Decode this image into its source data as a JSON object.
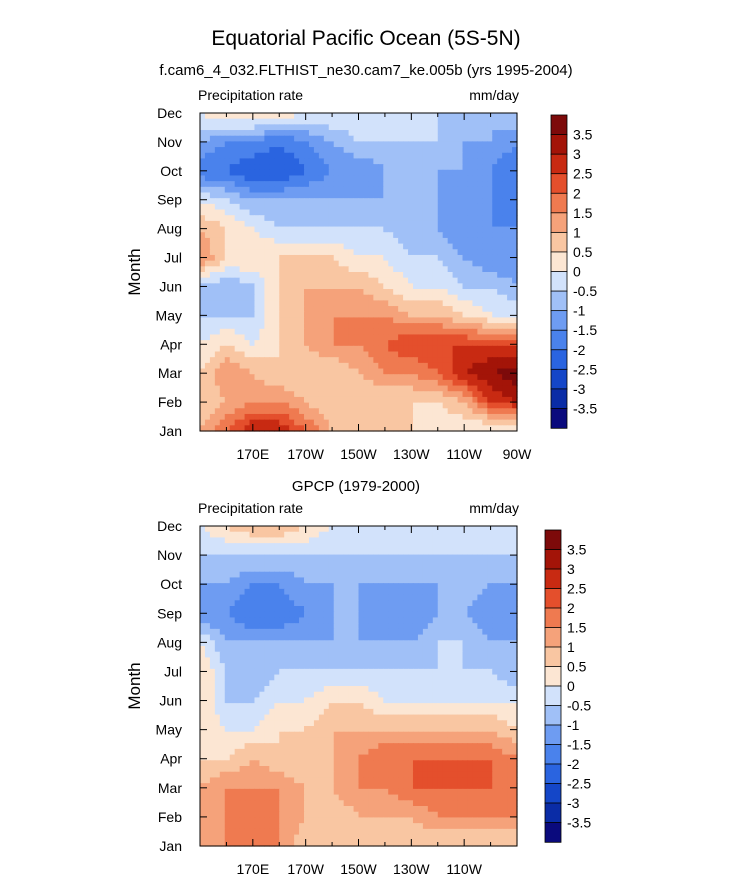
{
  "figure": {
    "title": "Equatorial Pacific Ocean (5S-5N)",
    "subtitle": "f.cam6_4_032.FLTHIST_ne30.cam7_ke.005b (yrs 1995-2004)"
  },
  "chart_data": [
    {
      "type": "heatmap",
      "panel_title": "",
      "variable": "Precipitation rate",
      "units": "mm/day",
      "xlabel": "",
      "ylabel": "Month",
      "x_ticks": [
        "170E",
        "170W",
        "150W",
        "130W",
        "110W",
        "90W"
      ],
      "x_tick_lon": [
        170,
        190,
        210,
        230,
        250,
        270
      ],
      "xlim_lon": [
        150,
        270
      ],
      "y_ticks": [
        "Jan",
        "Feb",
        "Mar",
        "Apr",
        "May",
        "Jun",
        "Jul",
        "Aug",
        "Sep",
        "Oct",
        "Nov",
        "Dec"
      ],
      "levels": [
        -3.5,
        -3,
        -2.5,
        -2,
        -1.5,
        -1,
        -0.5,
        0,
        0.5,
        1,
        1.5,
        2,
        2.5,
        3,
        3.5
      ],
      "colorbar_labels": [
        "3.5",
        "3",
        "2.5",
        "2",
        "1.5",
        "1",
        "0.5",
        "0",
        "-0.5",
        "-1",
        "-1.5",
        "-2",
        "-2.5",
        "-3",
        "-3.5"
      ],
      "lons": [
        150,
        160,
        170,
        180,
        190,
        200,
        210,
        220,
        230,
        240,
        250,
        260,
        270
      ],
      "values": [
        [
          1.0,
          2.0,
          3.0,
          3.0,
          2.0,
          1.0,
          0.5,
          0.5,
          0.5,
          0.0,
          0.0,
          -0.2,
          -0.3
        ],
        [
          0.5,
          1.0,
          1.5,
          1.5,
          1.0,
          0.5,
          0.5,
          0.5,
          0.5,
          0.5,
          1.0,
          2.5,
          3.0
        ],
        [
          0.5,
          1.5,
          1.0,
          0.5,
          0.5,
          0.5,
          1.0,
          1.5,
          1.5,
          2.0,
          3.0,
          3.5,
          3.8
        ],
        [
          0.0,
          0.5,
          0.0,
          0.5,
          1.0,
          1.5,
          1.5,
          2.0,
          2.5,
          2.5,
          2.5,
          2.5,
          2.5
        ],
        [
          -0.5,
          -0.5,
          -0.5,
          0.5,
          1.0,
          1.5,
          1.5,
          1.5,
          1.0,
          1.0,
          0.5,
          0.0,
          0.0
        ],
        [
          -0.5,
          -1.0,
          -0.5,
          0.5,
          1.0,
          1.0,
          1.0,
          0.5,
          0.0,
          0.0,
          -0.5,
          -0.5,
          -1.0
        ],
        [
          1.5,
          0.5,
          0.5,
          0.5,
          0.5,
          0.5,
          0.0,
          0.0,
          -0.5,
          -0.5,
          -1.0,
          -1.5,
          -1.5
        ],
        [
          1.0,
          0.5,
          0.0,
          -0.5,
          -0.5,
          -0.5,
          -0.5,
          -0.5,
          -1.0,
          -1.0,
          -1.5,
          -1.5,
          -1.5
        ],
        [
          0.0,
          -0.5,
          -1.0,
          -1.0,
          -1.0,
          -1.0,
          -1.0,
          -1.0,
          -1.0,
          -1.0,
          -1.5,
          -1.5,
          -2.0
        ],
        [
          -2.0,
          -2.0,
          -2.5,
          -2.5,
          -2.0,
          -1.5,
          -1.5,
          -1.0,
          -1.0,
          -1.0,
          -1.0,
          -1.5,
          -2.0
        ],
        [
          -1.0,
          -1.5,
          -1.5,
          -2.0,
          -1.5,
          -1.0,
          -0.5,
          -0.5,
          -0.5,
          -0.5,
          -1.0,
          -1.0,
          -1.5
        ],
        [
          0.0,
          0.5,
          0.5,
          0.5,
          0.0,
          0.0,
          0.0,
          -0.5,
          0.0,
          -0.5,
          -0.5,
          -1.0,
          -0.5
        ]
      ]
    },
    {
      "type": "heatmap",
      "panel_title": "GPCP (1979-2000)",
      "variable": "Precipitation rate",
      "units": "mm/day",
      "xlabel": "",
      "ylabel": "Month",
      "x_ticks": [
        "170E",
        "170W",
        "150W",
        "130W",
        "110W"
      ],
      "x_tick_lon": [
        170,
        190,
        210,
        230,
        250
      ],
      "xlim_lon": [
        150,
        270
      ],
      "y_ticks": [
        "Jan",
        "Feb",
        "Mar",
        "Apr",
        "May",
        "Jun",
        "Jul",
        "Aug",
        "Sep",
        "Oct",
        "Nov",
        "Dec"
      ],
      "levels": [
        -3.5,
        -3,
        -2.5,
        -2,
        -1.5,
        -1,
        -0.5,
        0,
        0.5,
        1,
        1.5,
        2,
        2.5,
        3,
        3.5
      ],
      "colorbar_labels": [
        "3.5",
        "3",
        "2.5",
        "2",
        "1.5",
        "1",
        "0.5",
        "0",
        "-0.5",
        "-1",
        "-1.5",
        "-2",
        "-2.5",
        "-3",
        "-3.5"
      ],
      "lons": [
        150,
        160,
        170,
        180,
        190,
        200,
        210,
        220,
        230,
        240,
        250,
        260,
        270
      ],
      "values": [
        [
          1.0,
          1.5,
          1.5,
          1.5,
          0.5,
          0.5,
          0.5,
          0.5,
          0.5,
          0.5,
          0.5,
          0.5,
          0.5
        ],
        [
          1.0,
          1.5,
          1.5,
          1.5,
          1.0,
          0.5,
          1.0,
          1.0,
          1.0,
          1.5,
          1.5,
          1.5,
          1.5
        ],
        [
          1.0,
          1.5,
          1.5,
          1.5,
          1.0,
          1.0,
          1.5,
          1.5,
          2.0,
          2.0,
          2.0,
          2.0,
          1.5
        ],
        [
          0.5,
          0.5,
          1.0,
          0.5,
          0.5,
          1.0,
          1.5,
          2.0,
          2.0,
          2.0,
          2.0,
          2.0,
          1.5
        ],
        [
          0.5,
          0.0,
          0.0,
          0.5,
          0.5,
          1.0,
          1.0,
          1.0,
          1.0,
          1.0,
          1.0,
          1.0,
          0.5
        ],
        [
          0.5,
          -0.5,
          -0.5,
          0.0,
          0.0,
          0.5,
          0.5,
          0.0,
          0.0,
          0.0,
          0.0,
          0.0,
          0.0
        ],
        [
          0.5,
          -0.5,
          -1.0,
          -0.5,
          -0.5,
          -0.5,
          -0.5,
          -0.5,
          -0.5,
          -0.5,
          -0.5,
          -0.5,
          -1.0
        ],
        [
          0.0,
          -1.0,
          -1.0,
          -1.0,
          -1.0,
          -1.0,
          -1.0,
          -1.0,
          -1.0,
          -0.5,
          -0.5,
          -1.0,
          -1.0
        ],
        [
          -1.5,
          -1.5,
          -2.0,
          -2.0,
          -1.5,
          -1.0,
          -1.0,
          -1.5,
          -1.5,
          -1.0,
          -1.0,
          -1.5,
          -1.0
        ],
        [
          -1.0,
          -1.0,
          -1.5,
          -1.5,
          -1.0,
          -1.0,
          -1.0,
          -1.0,
          -1.0,
          -1.0,
          -0.5,
          -1.0,
          -1.0
        ],
        [
          -0.5,
          -0.5,
          -0.5,
          -0.5,
          -0.5,
          -0.5,
          -0.5,
          -0.5,
          -0.5,
          -0.5,
          -0.5,
          -0.5,
          -0.5
        ],
        [
          0.0,
          0.5,
          1.0,
          1.0,
          0.5,
          0.0,
          0.0,
          0.0,
          0.0,
          0.0,
          -0.5,
          -0.5,
          -0.5
        ]
      ]
    }
  ],
  "palette": {
    "colors": [
      "#0a0a7d",
      "#0a2ca6",
      "#1446c8",
      "#2a64e0",
      "#4a82ec",
      "#6e9cf2",
      "#a0c0f7",
      "#d2e2fb",
      "#fce6d3",
      "#f9c6a2",
      "#f5a27a",
      "#ef7a50",
      "#e44f2c",
      "#c82a12",
      "#a31408",
      "#7d0a0a"
    ],
    "axis": "#000000",
    "background": "#ffffff"
  }
}
